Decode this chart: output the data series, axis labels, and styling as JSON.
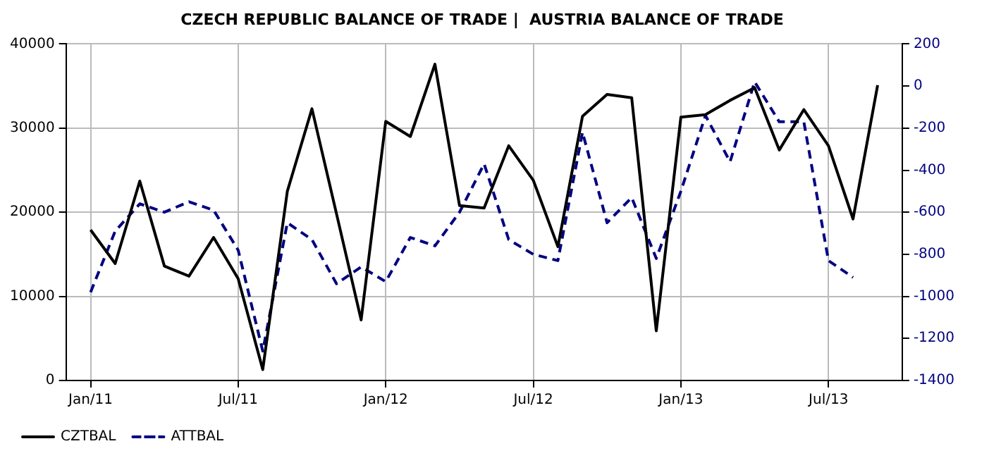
{
  "chart_data": {
    "type": "line",
    "title": "CZECH REPUBLIC BALANCE OF TRADE |  AUSTRIA BALANCE OF TRADE",
    "x": [
      "2011-01",
      "2011-02",
      "2011-03",
      "2011-04",
      "2011-05",
      "2011-06",
      "2011-07",
      "2011-08",
      "2011-09",
      "2011-10",
      "2011-11",
      "2011-12",
      "2012-01",
      "2012-02",
      "2012-03",
      "2012-04",
      "2012-05",
      "2012-06",
      "2012-07",
      "2012-08",
      "2012-09",
      "2012-10",
      "2012-11",
      "2012-12",
      "2013-01",
      "2013-02",
      "2013-03",
      "2013-04",
      "2013-05",
      "2013-06",
      "2013-07",
      "2013-08",
      "2013-09"
    ],
    "series": [
      {
        "name": "CZTBAL",
        "color": "#000000",
        "line_style": "solid",
        "values": [
          17900,
          13900,
          23700,
          13600,
          12400,
          17000,
          12100,
          1300,
          22500,
          32300,
          19800,
          7200,
          30800,
          29000,
          37600,
          20800,
          20500,
          27900,
          23800,
          15900,
          31400,
          34000,
          33600,
          5900,
          31300,
          31600,
          33300,
          34800,
          27400,
          32200,
          27900,
          19200,
          35100
        ]
      },
      {
        "name": "ATTBAL",
        "color": "#000080",
        "line_style": "dashed",
        "axis": "y2",
        "values": [
          -980,
          -690,
          -560,
          -600,
          -550,
          -590,
          -780,
          -1260,
          -650,
          -730,
          -940,
          -860,
          -930,
          -720,
          -760,
          -600,
          -370,
          -730,
          -800,
          -830,
          -220,
          -650,
          -530,
          -820,
          -500,
          -140,
          -360,
          20,
          -170,
          -170,
          -830,
          -910,
          null
        ]
      }
    ],
    "xlim": [
      "2010-12",
      "2013-10"
    ],
    "xticks": [
      {
        "value": "2011-01",
        "label": "Jan/11"
      },
      {
        "value": "2011-07",
        "label": "Jul/11"
      },
      {
        "value": "2012-01",
        "label": "Jan/12"
      },
      {
        "value": "2012-07",
        "label": "Jul/12"
      },
      {
        "value": "2013-01",
        "label": "Jan/13"
      },
      {
        "value": "2013-07",
        "label": "Jul/13"
      }
    ],
    "ylim": [
      0,
      40000
    ],
    "yticks": [
      0,
      10000,
      20000,
      30000,
      40000
    ],
    "y2lim": [
      -1400,
      200
    ],
    "y2ticks": [
      -1400,
      -1200,
      -1000,
      -800,
      -600,
      -400,
      -200,
      0,
      200
    ],
    "grid": true,
    "legend": "bottom left",
    "marker": "none"
  }
}
